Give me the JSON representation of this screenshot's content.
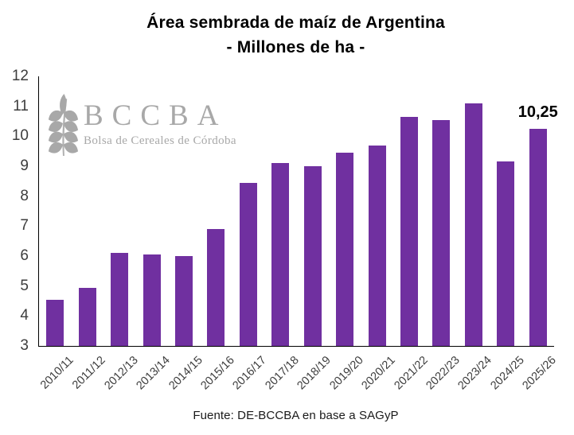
{
  "header": {
    "title": "Área sembrada de maíz de Argentina",
    "subtitle": "- Millones de ha -"
  },
  "logo": {
    "acronym": "BCCBA",
    "subtitle": "Bolsa de Cereales de Córdoba",
    "icon": "wheat-spike-icon",
    "color": "#a8a8a8"
  },
  "footer": {
    "source": "Fuente: DE-BCCBA en base a SAGyP"
  },
  "chart_data": {
    "type": "bar",
    "title": "Área sembrada de maíz de Argentina",
    "subtitle": "- Millones de ha -",
    "xlabel": "",
    "ylabel": "",
    "categories": [
      "2010/11",
      "2011/12",
      "2012/13",
      "2013/14",
      "2014/15",
      "2015/16",
      "2016/17",
      "2017/18",
      "2018/19",
      "2019/20",
      "2020/21",
      "2021/22",
      "2022/23",
      "2023/24",
      "2024/25",
      "2025/26"
    ],
    "values": [
      4.55,
      4.95,
      6.1,
      6.05,
      6.0,
      6.9,
      8.45,
      9.1,
      9.0,
      9.45,
      9.7,
      10.65,
      10.55,
      11.1,
      9.15,
      10.25
    ],
    "ylim": [
      3,
      12
    ],
    "ytick_step": 1,
    "y_tick_labels": [
      "3",
      "4",
      "5",
      "6",
      "7",
      "8",
      "9",
      "10",
      "11",
      "12"
    ],
    "x_tick_rotation": 45,
    "grid": false,
    "legend": null,
    "bar_color": "#7030A0",
    "axis_color": "#000000",
    "tick_label_color": "#3d3d3d",
    "data_labels": [
      {
        "index": 15,
        "text": "10,25"
      }
    ]
  }
}
